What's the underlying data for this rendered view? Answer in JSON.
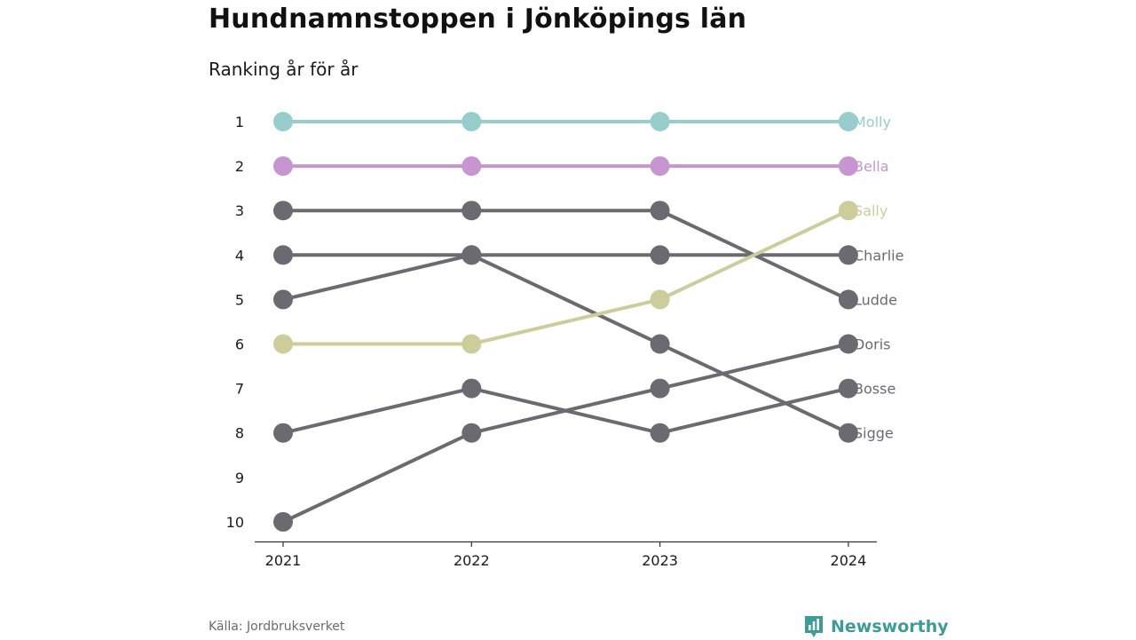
{
  "header": {
    "title": "Hundnamnstoppen i Jönköpings län",
    "subtitle": "Ranking år för år"
  },
  "footer": {
    "source": "Källa: Jordbruksverket",
    "brand": "Newsworthy",
    "brand_icon": "bar-chart-logo-icon"
  },
  "colors": {
    "teal": "#97cdcd",
    "purple": "#c795cf",
    "olive": "#cdcd9b",
    "gray": "#6b6a71",
    "brand": "#3d9c97"
  },
  "chart_data": {
    "type": "line",
    "subtype": "bump",
    "x": [
      "2021",
      "2022",
      "2023",
      "2024"
    ],
    "y_ticks": [
      "1",
      "2",
      "3",
      "4",
      "5",
      "6",
      "7",
      "8",
      "9",
      "10"
    ],
    "ylim": [
      1,
      10
    ],
    "y_inverted": true,
    "grid": false,
    "legend": "direct labels at right end",
    "series": [
      {
        "name": "Molly",
        "color": "#97cdcd",
        "values": [
          1,
          1,
          1,
          1
        ]
      },
      {
        "name": "Bella",
        "color": "#c795cf",
        "values": [
          2,
          2,
          2,
          2
        ]
      },
      {
        "name": "Sally",
        "color": "#cdcd9b",
        "values": [
          6,
          6,
          5,
          3
        ]
      },
      {
        "name": "Charlie",
        "color": "#6b6a71",
        "values": [
          4,
          4,
          4,
          4
        ]
      },
      {
        "name": "Ludde",
        "color": "#6b6a71",
        "values": [
          3,
          3,
          3,
          5
        ]
      },
      {
        "name": "Doris",
        "color": "#6b6a71",
        "values": [
          10,
          8,
          7,
          6
        ]
      },
      {
        "name": "Bosse",
        "color": "#6b6a71",
        "values": [
          8,
          7,
          8,
          7
        ]
      },
      {
        "name": "Sigge",
        "color": "#6b6a71",
        "values": [
          5,
          4,
          6,
          8
        ]
      }
    ]
  }
}
